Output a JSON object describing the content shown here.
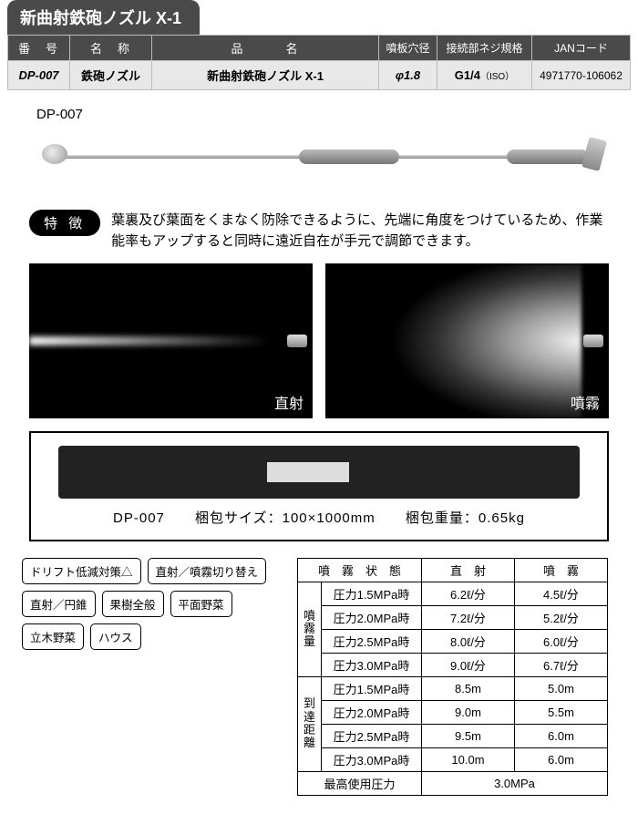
{
  "title": "新曲射鉄砲ノズル X-1",
  "spec_headers": {
    "bango": "番　号",
    "meisho": "名　称",
    "hinmei": "品　　　名",
    "funkou": "噴板穴径",
    "neji": "接続部ネジ規格",
    "jan": "JANコード"
  },
  "spec_row": {
    "code": "DP-007",
    "name": "鉄砲ノズル",
    "product": "新曲射鉄砲ノズル X-1",
    "hole": "φ1.8",
    "thread": "G1/4",
    "thread_note": "（ISO）",
    "jan": "4971770-106062"
  },
  "prod_label": "DP-007",
  "feature_label": "特 徴",
  "feature_text": "葉裏及び葉面をくまなく防除できるように、先端に角度をつけているため、作業能率もアップすると同時に遠近自在が手元で調節できます。",
  "spray_labels": {
    "jet": "直射",
    "mist": "噴霧"
  },
  "pack": {
    "code": "DP-007",
    "size_label": "梱包サイズ：100×1000mm",
    "weight_label": "梱包重量：0.65kg"
  },
  "tags": [
    "ドリフト低減対策△",
    "直射／噴霧切り替え",
    "直射／円錐",
    "果樹全般",
    "平面野菜",
    "立木野菜",
    "ハウス"
  ],
  "perf": {
    "top_header": {
      "state": "噴　霧　状　態",
      "jet": "直　射",
      "mist": "噴　霧"
    },
    "row_groups": [
      {
        "label": "噴霧量",
        "rows": [
          {
            "cond": "圧力1.5MPa時",
            "jet": "6.2ℓ/分",
            "mist": "4.5ℓ/分"
          },
          {
            "cond": "圧力2.0MPa時",
            "jet": "7.2ℓ/分",
            "mist": "5.2ℓ/分"
          },
          {
            "cond": "圧力2.5MPa時",
            "jet": "8.0ℓ/分",
            "mist": "6.0ℓ/分"
          },
          {
            "cond": "圧力3.0MPa時",
            "jet": "9.0ℓ/分",
            "mist": "6.7ℓ/分"
          }
        ]
      },
      {
        "label": "到達距離",
        "rows": [
          {
            "cond": "圧力1.5MPa時",
            "jet": "8.5m",
            "mist": "5.0m"
          },
          {
            "cond": "圧力2.0MPa時",
            "jet": "9.0m",
            "mist": "5.5m"
          },
          {
            "cond": "圧力2.5MPa時",
            "jet": "9.5m",
            "mist": "6.0m"
          },
          {
            "cond": "圧力3.0MPa時",
            "jet": "10.0m",
            "mist": "6.0m"
          }
        ]
      }
    ],
    "max_label": "最高使用圧力",
    "max_value": "3.0MPa"
  },
  "colors": {
    "header_bg": "#4a4a4a",
    "row_bg": "#e8e8e8"
  }
}
